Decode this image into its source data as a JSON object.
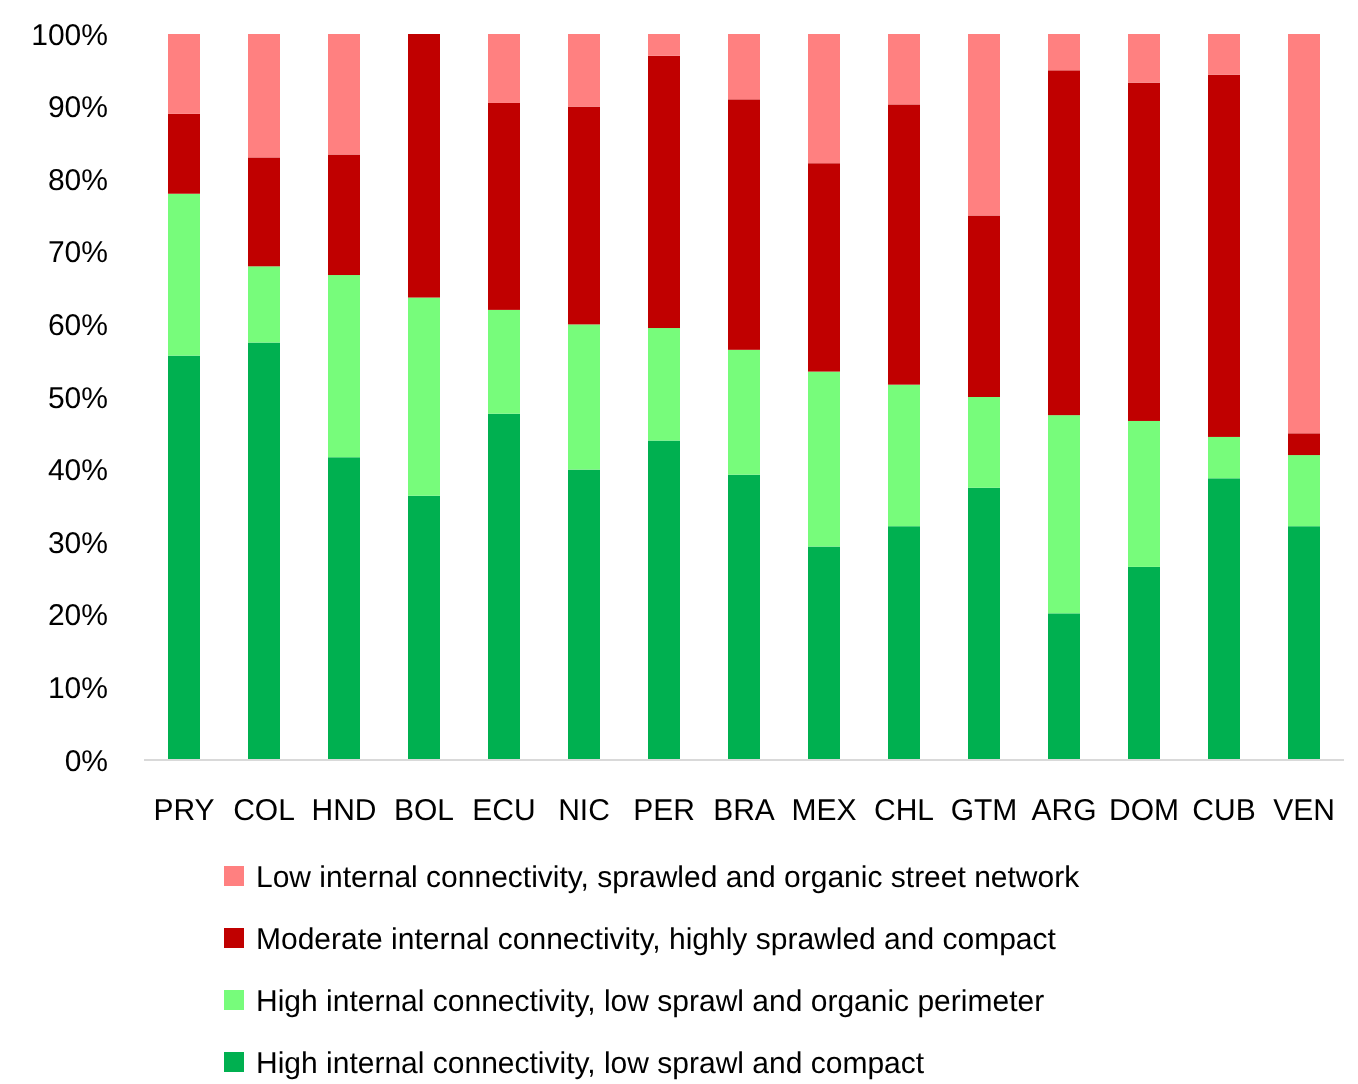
{
  "chart_data": {
    "type": "bar",
    "stacked": true,
    "categories": [
      "PRY",
      "COL",
      "HND",
      "BOL",
      "ECU",
      "NIC",
      "PER",
      "BRA",
      "MEX",
      "CHL",
      "GTM",
      "ARG",
      "DOM",
      "CUB",
      "VEN"
    ],
    "series": [
      {
        "name": "High internal connectivity, low sprawl and compact",
        "color": "#00b050",
        "values": [
          55.7,
          57.5,
          41.7,
          36.4,
          47.7,
          40,
          44,
          39.3,
          29.4,
          32.2,
          37.5,
          20.2,
          26.6,
          38.8,
          32.2
        ]
      },
      {
        "name": "High internal connectivity,  low sprawl and organic perimeter",
        "color": "#77fc7b",
        "values": [
          22.3,
          10.5,
          25.1,
          27.3,
          14.3,
          20,
          15.5,
          17.2,
          24.1,
          19.5,
          12.5,
          27.3,
          20.1,
          5.7,
          9.8
        ]
      },
      {
        "name": "Moderate internal connectivity, highly sprawled and compact",
        "color": "#c00000",
        "values": [
          11,
          15,
          16.6,
          36.3,
          28.5,
          30,
          37.5,
          34.5,
          28.7,
          38.6,
          25,
          47.5,
          46.6,
          49.9,
          3
        ]
      },
      {
        "name": "Low internal connectivity, sprawled and organic street network",
        "color": "#ff8080",
        "values": [
          11,
          17,
          16.6,
          0,
          9.5,
          10,
          3,
          9,
          17.8,
          9.7,
          25,
          5,
          6.7,
          5.6,
          55
        ]
      }
    ],
    "ylim": [
      0,
      100
    ],
    "yticks": [
      {
        "value": 0,
        "label": "0%"
      },
      {
        "value": 10,
        "label": "10%"
      },
      {
        "value": 20,
        "label": "20%"
      },
      {
        "value": 30,
        "label": "30%"
      },
      {
        "value": 40,
        "label": "40%"
      },
      {
        "value": 50,
        "label": "50%"
      },
      {
        "value": 60,
        "label": "60%"
      },
      {
        "value": 70,
        "label": "70%"
      },
      {
        "value": 80,
        "label": "80%"
      },
      {
        "value": 90,
        "label": "90%"
      },
      {
        "value": 100,
        "label": "100%"
      }
    ],
    "grid": false,
    "legend": "bottom"
  }
}
